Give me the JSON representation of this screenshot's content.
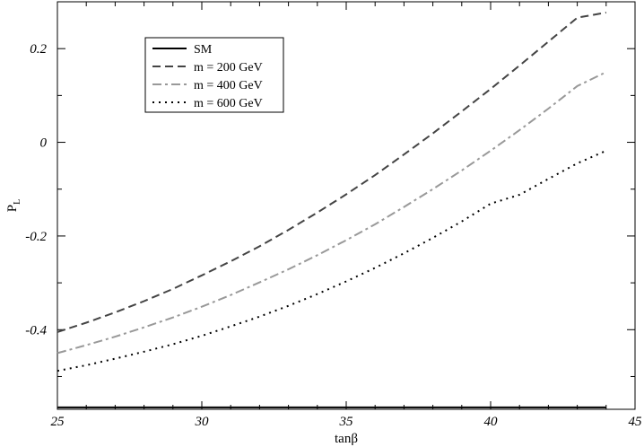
{
  "chart_data": {
    "type": "line",
    "title": "",
    "xlabel": "tanβ",
    "ylabel_main": "P",
    "ylabel_sub": "L",
    "xlim": [
      25,
      45
    ],
    "ylim": [
      -0.57,
      0.3
    ],
    "x_ticks": [
      25,
      30,
      35,
      40,
      45
    ],
    "y_ticks": [
      -0.4,
      -0.2,
      0,
      0.2
    ],
    "x_tick_labels": [
      "25",
      "30",
      "35",
      "40",
      "45"
    ],
    "y_tick_labels": [
      "-0.4",
      "-0.2",
      "0",
      "0.2"
    ],
    "grid": false,
    "legend_position": "top-left",
    "series": [
      {
        "name": "SM",
        "style": "solid",
        "color": "#000000",
        "x": [
          25,
          44
        ],
        "y": [
          -0.566,
          -0.566
        ]
      },
      {
        "name": "m = 200 GeV",
        "style": "dashed",
        "color": "#444444",
        "x": [
          25,
          26,
          27,
          28,
          29,
          30,
          31,
          32,
          33,
          34,
          35,
          36,
          37,
          38,
          39,
          40,
          41,
          42,
          43,
          44
        ],
        "y": [
          -0.405,
          -0.385,
          -0.363,
          -0.339,
          -0.313,
          -0.284,
          -0.254,
          -0.222,
          -0.187,
          -0.15,
          -0.111,
          -0.07,
          -0.026,
          0.019,
          0.066,
          0.114,
          0.164,
          0.215,
          0.266,
          0.277
        ]
      },
      {
        "name": "m = 400 GeV",
        "style": "dashdot",
        "color": "#999999",
        "x": [
          25,
          26,
          27,
          28,
          29,
          30,
          31,
          32,
          33,
          34,
          35,
          36,
          37,
          38,
          39,
          40,
          41,
          42,
          43,
          44
        ],
        "y": [
          -0.45,
          -0.433,
          -0.415,
          -0.395,
          -0.374,
          -0.351,
          -0.326,
          -0.299,
          -0.271,
          -0.241,
          -0.209,
          -0.175,
          -0.138,
          -0.1,
          -0.06,
          -0.018,
          0.026,
          0.072,
          0.12,
          0.15
        ]
      },
      {
        "name": "m = 600 GeV",
        "style": "dotted",
        "color": "#000000",
        "x": [
          25,
          26,
          27,
          28,
          29,
          30,
          31,
          32,
          33,
          34,
          35,
          36,
          37,
          38,
          39,
          40,
          41,
          42,
          43,
          44
        ],
        "y": [
          -0.488,
          -0.476,
          -0.462,
          -0.447,
          -0.431,
          -0.413,
          -0.393,
          -0.372,
          -0.349,
          -0.324,
          -0.297,
          -0.268,
          -0.237,
          -0.204,
          -0.169,
          -0.131,
          -0.112,
          -0.078,
          -0.045,
          -0.018
        ]
      }
    ]
  }
}
